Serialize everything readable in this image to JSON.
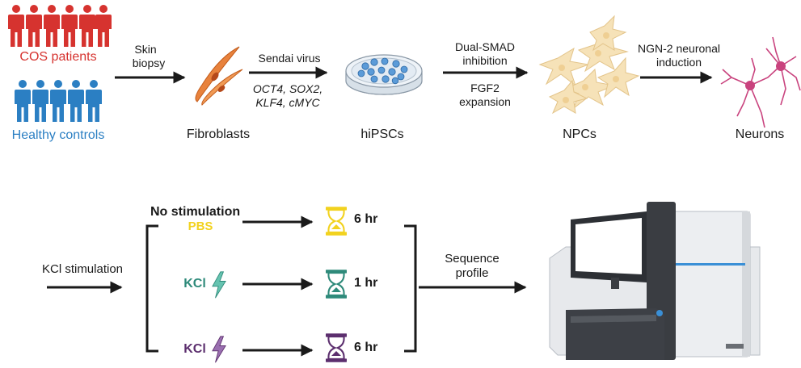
{
  "groups": {
    "cos": {
      "label": "COS patients",
      "color": "#d6332f"
    },
    "healthy": {
      "label": "Healthy controls",
      "color": "#2b7fc3"
    }
  },
  "stages": {
    "fibroblasts": "Fibroblasts",
    "hipscs": "hiPSCs",
    "npcs": "NPCs",
    "neurons": "Neurons"
  },
  "steps": {
    "skin_biopsy": [
      "Skin",
      "biopsy"
    ],
    "sendai": {
      "title": "Sendai virus",
      "factors_line1": "OCT4, SOX2,",
      "factors_line2": "KLF4, cMYC"
    },
    "dual_smad": [
      "Dual-SMAD",
      "inhibition"
    ],
    "fgf2": [
      "FGF2",
      "expansion"
    ],
    "ngn2": [
      "NGN-2 neuronal",
      "induction"
    ]
  },
  "stimulation": {
    "input_label": "KCl stimulation",
    "no_stim_label": "No stimulation",
    "conditions": [
      {
        "agent": "PBS",
        "time": "6 hr",
        "color": "#f2d21f"
      },
      {
        "agent": "KCl",
        "time": "1 hr",
        "color": "#2e8a7a"
      },
      {
        "agent": "KCl",
        "time": "6 hr",
        "color": "#5c2f6e"
      }
    ],
    "output_label": [
      "Sequence",
      "profile"
    ]
  },
  "icons": {
    "people": "person-icon",
    "fibroblast": "fibroblast-cell-icon",
    "dish": "petri-dish-icon",
    "npc": "npc-cells-icon",
    "neuron": "neuron-icon",
    "hourglass": "hourglass-icon",
    "lightning": "lightning-bolt-icon",
    "sequencer": "sequencer-machine-icon"
  }
}
